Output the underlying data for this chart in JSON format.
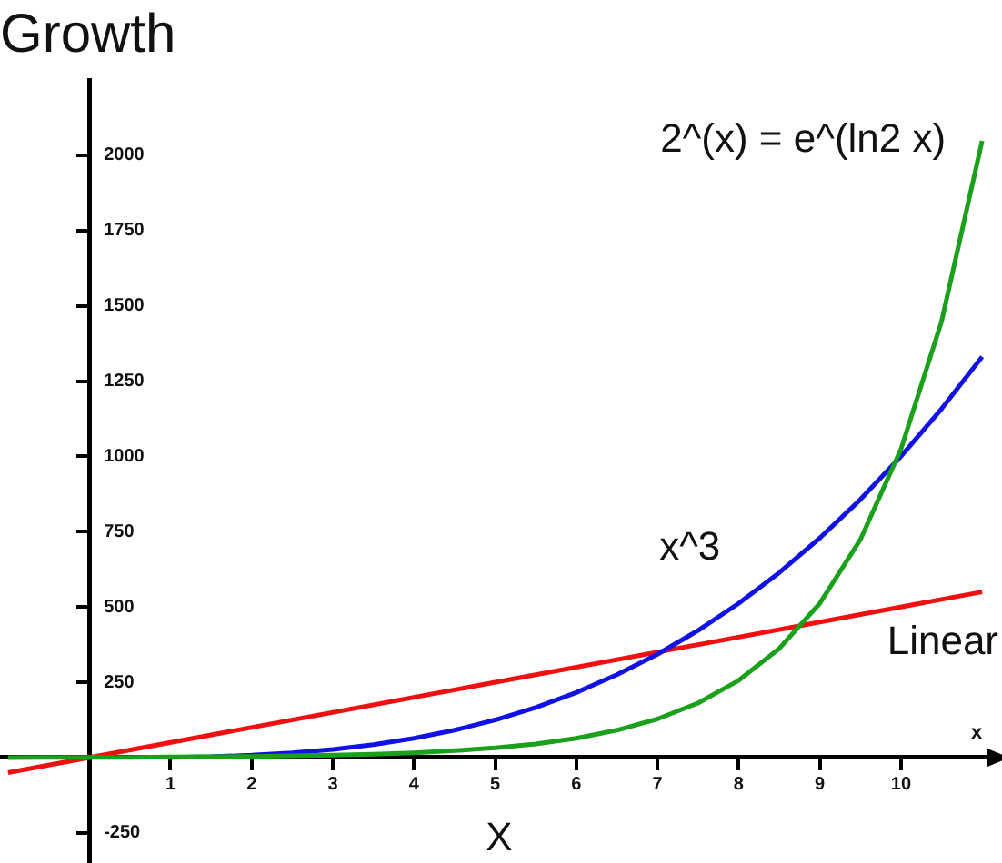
{
  "chart_data": {
    "type": "line",
    "title": "Growth",
    "xlabel": "X",
    "x": [
      -1,
      -0.5,
      0,
      0.5,
      1,
      1.5,
      2,
      2.5,
      3,
      3.5,
      4,
      4.5,
      5,
      5.5,
      6,
      6.5,
      7,
      7.5,
      8,
      8.5,
      9,
      9.5,
      10,
      10.5,
      11
    ],
    "series": [
      {
        "name": "2^(x) = e^(ln2 x)",
        "color": "#1aa01a",
        "values": [
          0,
          1,
          1,
          1,
          2,
          3,
          4,
          6,
          8,
          11,
          16,
          23,
          32,
          45,
          64,
          91,
          128,
          181,
          256,
          362,
          512,
          724,
          1024,
          1448,
          2048
        ]
      },
      {
        "name": "x^3",
        "color": "#1010e8",
        "values": [
          null,
          null,
          null,
          null,
          1,
          3,
          8,
          16,
          27,
          43,
          64,
          91,
          125,
          166,
          216,
          275,
          343,
          422,
          512,
          614,
          729,
          857,
          1000,
          1158,
          1331
        ]
      },
      {
        "name": "Linear",
        "color": "#f01010",
        "x": [
          -1,
          11
        ],
        "values": [
          -50,
          550
        ]
      }
    ],
    "xlim": [
      -1.1,
      11.2
    ],
    "ylim": [
      -350,
      2250
    ],
    "xticks": [
      1,
      2,
      3,
      4,
      5,
      6,
      7,
      8,
      9,
      10
    ],
    "yticks": [
      -250,
      250,
      500,
      750,
      1000,
      1250,
      1500,
      1750,
      2000
    ],
    "annotations": [
      "x"
    ],
    "grid": false,
    "legend": false,
    "marker": "none",
    "line_style": "solid"
  }
}
